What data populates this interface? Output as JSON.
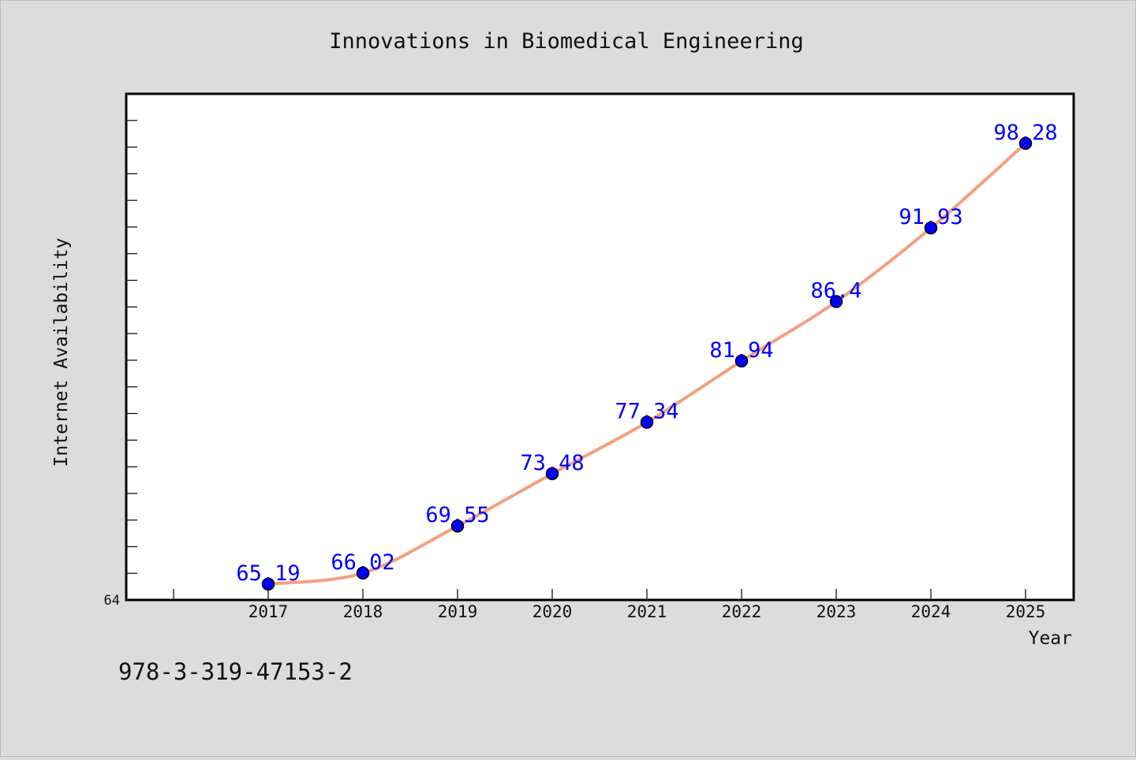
{
  "chart_data": {
    "type": "line",
    "title": "Innovations in Biomedical Engineering",
    "xlabel": "Year",
    "ylabel": "Internet Availability",
    "x": [
      "2017",
      "2018",
      "2019",
      "2020",
      "2021",
      "2022",
      "2023",
      "2024",
      "2025"
    ],
    "series": [
      {
        "values": [
          65.19,
          66.02,
          69.55,
          73.48,
          77.34,
          81.94,
          86.4,
          91.93,
          98.28
        ],
        "labels": [
          "65.19",
          "66.02",
          "69.55",
          "73.48",
          "77.34",
          "81.94",
          "86.4",
          "91.93",
          "98.28"
        ]
      }
    ],
    "ylim": [
      64,
      102
    ],
    "y_tick_labels": [
      "64"
    ],
    "grid": false,
    "colors": {
      "line": "#f4a07e",
      "marker": "#0000ff",
      "label": "#0000ff",
      "background": "#dcdcdc",
      "plot_background": "#ffffff"
    }
  },
  "annotation": "978-3-319-47153-2"
}
